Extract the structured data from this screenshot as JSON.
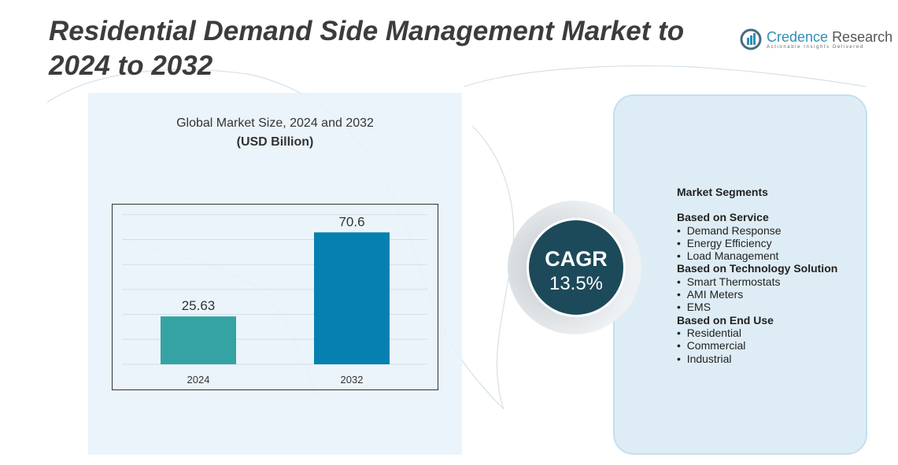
{
  "title": "Residential Demand Side Management Market to 2024 to 2032",
  "logo": {
    "name_part1": "Credence",
    "name_part2": "Research",
    "tagline": "Actionable Insights Delivered"
  },
  "chart_data": {
    "type": "bar",
    "title": "Global Market Size, 2024 and 2032",
    "subtitle": "(USD Billion)",
    "categories": [
      "2024",
      "2032"
    ],
    "values": [
      25.63,
      70.6
    ],
    "value_labels": [
      "25.63",
      "70.6"
    ],
    "colors": [
      "#35a3a3",
      "#0680b0"
    ],
    "ylim": [
      0,
      80
    ],
    "grid": true,
    "xlabel": "",
    "ylabel": ""
  },
  "cagr": {
    "label": "CAGR",
    "value": "13.5%"
  },
  "segments": {
    "heading": "Market Segments",
    "groups": [
      {
        "title": "Based on Service",
        "items": [
          "Demand Response",
          "Energy Efficiency",
          "Load Management"
        ]
      },
      {
        "title": "Based on Technology Solution",
        "items": [
          "Smart Thermostats",
          "AMI Meters",
          "EMS"
        ]
      },
      {
        "title": "Based on End Use",
        "items": [
          "Residential",
          "Commercial",
          "Industrial"
        ]
      }
    ]
  }
}
